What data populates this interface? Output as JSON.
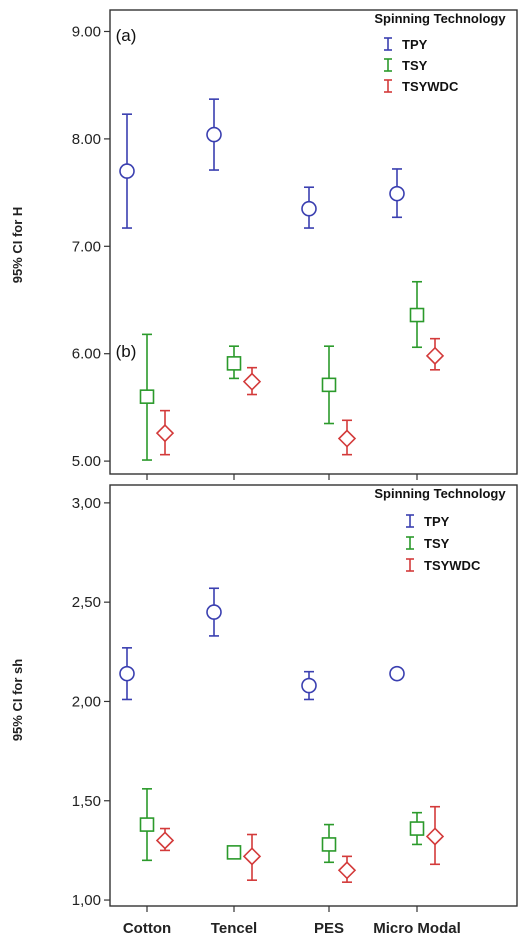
{
  "chart_data": [
    {
      "type": "scatter",
      "panel_tag": "(a)",
      "ylabel": "95% CI for H",
      "ylim": [
        4.88,
        9.2
      ],
      "yticks": [
        "5.00",
        "6.00",
        "7.00",
        "8.00",
        "9.00"
      ],
      "ytick_values": [
        5,
        6,
        7,
        8,
        9
      ],
      "categories": [
        "Cotton",
        "Tencel",
        "PES",
        "Micro Modal"
      ],
      "legend": {
        "title": "Spinning Technology",
        "placement": "top-right"
      },
      "grid": false,
      "series": [
        {
          "name": "TPY",
          "color": "#3a3fb0",
          "marker": "circle",
          "values": [
            7.7,
            8.04,
            7.35,
            7.49
          ],
          "ci_low": [
            7.17,
            7.71,
            7.17,
            7.27
          ],
          "ci_high": [
            8.23,
            8.37,
            7.55,
            7.72
          ]
        },
        {
          "name": "TSY",
          "color": "#2b9a2b",
          "marker": "square",
          "values": [
            5.6,
            5.91,
            5.71,
            6.36
          ],
          "ci_low": [
            5.01,
            5.77,
            5.35,
            6.06
          ],
          "ci_high": [
            6.18,
            6.07,
            6.07,
            6.67
          ]
        },
        {
          "name": "TSYWDC",
          "color": "#d33a3a",
          "marker": "diamond",
          "values": [
            5.26,
            5.74,
            5.21,
            5.98
          ],
          "ci_low": [
            5.06,
            5.62,
            5.06,
            5.85
          ],
          "ci_high": [
            5.47,
            5.87,
            5.38,
            6.14
          ]
        }
      ]
    },
    {
      "type": "scatter",
      "panel_tag": "(b)",
      "ylabel": "95% CI for sh",
      "ylim": [
        0.97,
        3.09
      ],
      "yticks": [
        "1,00",
        "1,50",
        "2,00",
        "2,50",
        "3,00"
      ],
      "ytick_values": [
        1,
        1.5,
        2,
        2.5,
        3
      ],
      "categories": [
        "Cotton",
        "Tencel",
        "PES",
        "Micro Modal"
      ],
      "legend": {
        "title": "Spinning Technology",
        "placement": "top-right"
      },
      "grid": false,
      "series": [
        {
          "name": "TPY",
          "color": "#3a3fb0",
          "marker": "circle",
          "values": [
            2.14,
            2.45,
            2.08,
            2.14
          ],
          "ci_low": [
            2.01,
            2.33,
            2.01,
            2.12
          ],
          "ci_high": [
            2.27,
            2.57,
            2.15,
            2.16
          ]
        },
        {
          "name": "TSY",
          "color": "#2b9a2b",
          "marker": "square",
          "values": [
            1.38,
            1.24,
            1.28,
            1.36
          ],
          "ci_low": [
            1.2,
            1.23,
            1.19,
            1.28
          ],
          "ci_high": [
            1.56,
            1.26,
            1.38,
            1.44
          ]
        },
        {
          "name": "TSYWDC",
          "color": "#d33a3a",
          "marker": "diamond",
          "values": [
            1.3,
            1.22,
            1.15,
            1.32
          ],
          "ci_low": [
            1.25,
            1.1,
            1.09,
            1.18
          ],
          "ci_high": [
            1.36,
            1.33,
            1.22,
            1.47
          ]
        }
      ]
    }
  ]
}
